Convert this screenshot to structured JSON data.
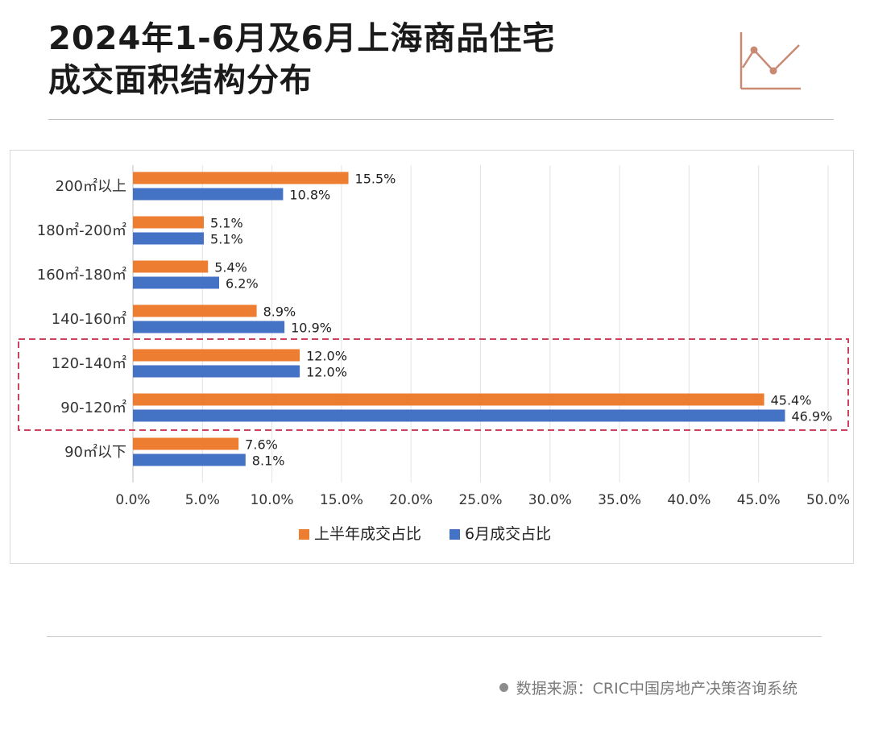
{
  "title": {
    "line1": "2024年1-6月及6月上海商品住宅",
    "line2": "成交面积结构分布"
  },
  "colors": {
    "series_h1": "#ED7D31",
    "series_jun": "#4472C4",
    "highlight_border": "#C9445C",
    "deco_line": "#C98A73"
  },
  "decor": {
    "icon": "line-chart-icon"
  },
  "chart_data": {
    "type": "bar",
    "orientation": "horizontal",
    "categories": [
      "200㎡以上",
      "180㎡-200㎡",
      "160㎡-180㎡",
      "140-160㎡",
      "120-140㎡",
      "90-120㎡",
      "90㎡以下"
    ],
    "series": [
      {
        "name": "上半年成交占比",
        "values": [
          15.5,
          5.1,
          5.4,
          8.9,
          12.0,
          45.4,
          7.6
        ],
        "labels": [
          "15.5%",
          "5.1%",
          "5.4%",
          "8.9%",
          "12.0%",
          "45.4%",
          "7.6%"
        ]
      },
      {
        "name": "6月成交占比",
        "values": [
          10.8,
          5.1,
          6.2,
          10.9,
          12.0,
          46.9,
          8.1
        ],
        "labels": [
          "10.8%",
          "5.1%",
          "6.2%",
          "10.9%",
          "12.0%",
          "46.9%",
          "8.1%"
        ]
      }
    ],
    "xlim": [
      0,
      50
    ],
    "x_ticks": [
      "0.0%",
      "5.0%",
      "10.0%",
      "15.0%",
      "20.0%",
      "25.0%",
      "30.0%",
      "35.0%",
      "40.0%",
      "45.0%",
      "50.0%"
    ],
    "grid": true,
    "legend_position": "bottom",
    "highlighted_categories": [
      "120-140㎡",
      "90-120㎡"
    ]
  },
  "source": {
    "text": "数据来源：CRIC中国房地产决策咨询系统"
  }
}
